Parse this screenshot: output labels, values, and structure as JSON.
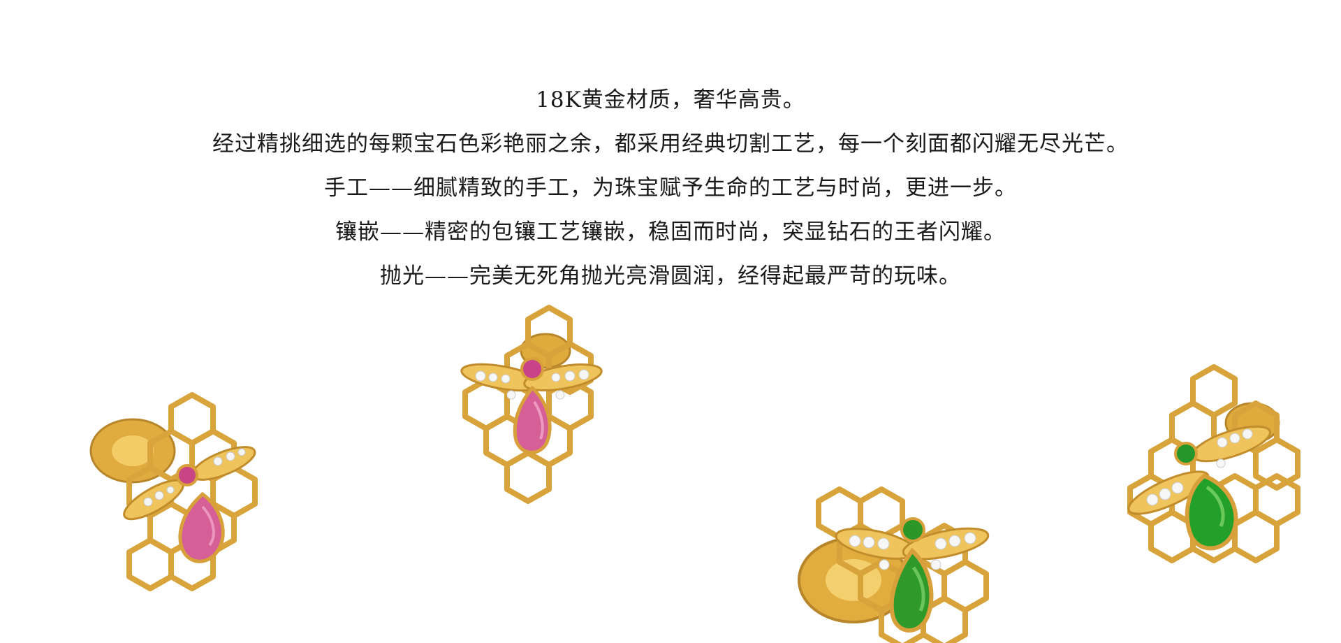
{
  "copy": {
    "lines": [
      "18K黄金材质，奢华高贵。",
      "经过精挑细选的每颗宝石色彩艳丽之余，都采用经典切割工艺，每一个刻面都闪耀无尽光芒。",
      "手工——细腻精致的手工，为珠宝赋予生命的工艺与时尚，更进一步。",
      "镶嵌——精密的包镶工艺镶嵌，稳固而时尚，突显钻石的王者闪耀。",
      "抛光——完美无死角抛光亮滑圆润，经得起最严苛的玩味。"
    ]
  },
  "products": [
    {
      "name": "bee-honeycomb-earring-pink-tourmaline",
      "gem": "pink tourmaline",
      "gem_color": "#d0569a"
    },
    {
      "name": "bee-honeycomb-earring-pink-tourmaline",
      "gem": "pink tourmaline",
      "gem_color": "#d65f98"
    },
    {
      "name": "bee-honeycomb-earring-chrome-diopside",
      "gem": "green diopside",
      "gem_color": "#2f9a2a"
    },
    {
      "name": "bee-honeycomb-earring-chrome-diopside",
      "gem": "green diopside",
      "gem_color": "#22a02a"
    }
  ],
  "colors": {
    "gold": "#d9a93c",
    "gold_dark": "#b8862a",
    "text": "#1a1a1a",
    "background": "#ffffff"
  }
}
